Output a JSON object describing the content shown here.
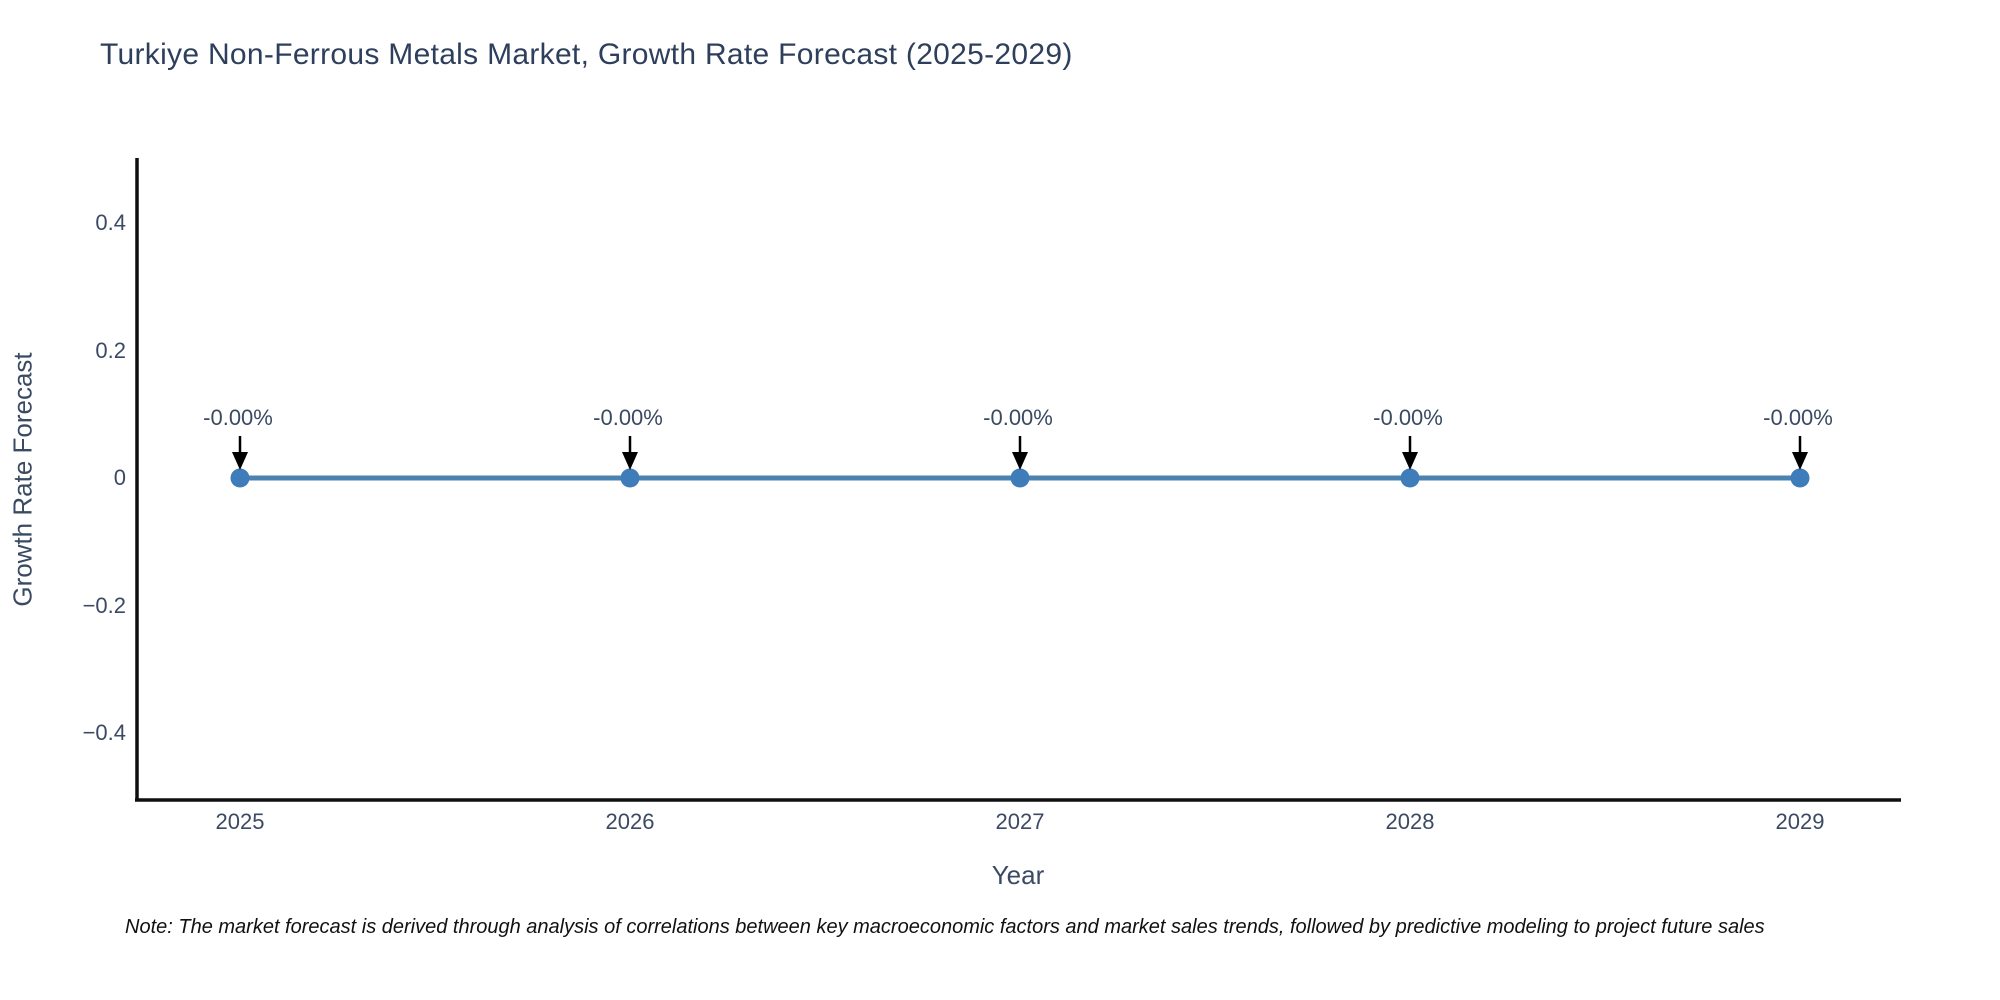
{
  "note": "Note: The market forecast is derived through analysis of correlations between key macroeconomic factors and market sales trends, followed by predictive modeling to project future sales",
  "chart_data": {
    "type": "line",
    "title": "Turkiye Non-Ferrous Metals Market, Growth Rate Forecast (2025-2029)",
    "xlabel": "Year",
    "ylabel": "Growth Rate Forecast",
    "x": [
      2025,
      2026,
      2027,
      2028,
      2029
    ],
    "values": [
      0,
      0,
      0,
      0,
      0
    ],
    "point_labels": [
      "-0.00%",
      "-0.00%",
      "-0.00%",
      "-0.00%",
      "-0.00%"
    ],
    "ylim": [
      -0.5,
      0.5
    ],
    "yticks": [
      0.4,
      0.2,
      0,
      -0.2,
      -0.4
    ],
    "ytick_labels": [
      "0.4",
      "0.2",
      "0",
      "−0.2",
      "−0.4"
    ],
    "grid": false,
    "legend": "none",
    "line_color": "#4c82b0",
    "marker_color": "#3e7cba",
    "arrow_color": "#000000",
    "axis_color": "#0f0f0f"
  }
}
